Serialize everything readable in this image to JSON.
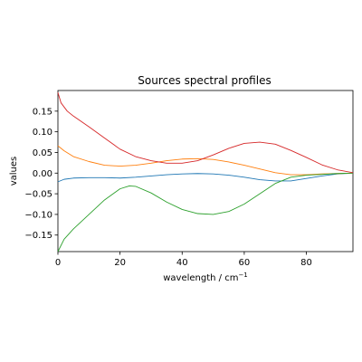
{
  "chart_data": {
    "type": "line",
    "title": "Sources spectral profiles",
    "xlabel": "wavelength / cm",
    "xlabel_superscript": "−1",
    "ylabel": "values",
    "xlim": [
      0,
      95
    ],
    "ylim": [
      -0.19,
      0.2
    ],
    "xticks": [
      0,
      20,
      40,
      60,
      80
    ],
    "xtick_labels": [
      "0",
      "20",
      "40",
      "60",
      "80"
    ],
    "yticks": [
      -0.15,
      -0.1,
      -0.05,
      0.0,
      0.05,
      0.1,
      0.15
    ],
    "ytick_labels": [
      "−0.15",
      "−0.10",
      "−0.05",
      "0.00",
      "0.05",
      "0.10",
      "0.15"
    ],
    "grid": false,
    "series": [
      {
        "color": "#1f77b4",
        "x": [
          0,
          2,
          5,
          10,
          15,
          20,
          25,
          30,
          35,
          40,
          45,
          50,
          55,
          60,
          65,
          70,
          75,
          80,
          85,
          90,
          95
        ],
        "y": [
          -0.021,
          -0.015,
          -0.012,
          -0.011,
          -0.011,
          -0.012,
          -0.01,
          -0.007,
          -0.004,
          -0.002,
          -0.001,
          -0.002,
          -0.005,
          -0.01,
          -0.016,
          -0.019,
          -0.019,
          -0.013,
          -0.007,
          -0.002,
          0.0
        ]
      },
      {
        "color": "#ff7f0e",
        "x": [
          0,
          2,
          5,
          10,
          15,
          20,
          25,
          30,
          35,
          40,
          45,
          50,
          55,
          60,
          65,
          70,
          75,
          80,
          85,
          90,
          95
        ],
        "y": [
          0.066,
          0.054,
          0.04,
          0.028,
          0.019,
          0.017,
          0.019,
          0.024,
          0.03,
          0.034,
          0.035,
          0.033,
          0.027,
          0.019,
          0.01,
          0.001,
          -0.004,
          -0.004,
          -0.002,
          -0.001,
          0.0
        ]
      },
      {
        "color": "#2ca02c",
        "x": [
          0,
          2,
          5,
          10,
          15,
          20,
          23,
          25,
          30,
          35,
          40,
          45,
          50,
          55,
          60,
          65,
          70,
          75,
          80,
          85,
          90,
          95
        ],
        "y": [
          -0.19,
          -0.16,
          -0.135,
          -0.1,
          -0.065,
          -0.038,
          -0.031,
          -0.032,
          -0.048,
          -0.07,
          -0.088,
          -0.098,
          -0.1,
          -0.093,
          -0.075,
          -0.05,
          -0.025,
          -0.01,
          -0.005,
          -0.003,
          -0.001,
          0.0
        ]
      },
      {
        "color": "#d62728",
        "x": [
          0,
          1,
          3,
          5,
          10,
          15,
          20,
          25,
          30,
          35,
          40,
          45,
          50,
          55,
          60,
          65,
          70,
          75,
          80,
          85,
          90,
          95
        ],
        "y": [
          0.195,
          0.17,
          0.15,
          0.138,
          0.112,
          0.085,
          0.058,
          0.04,
          0.03,
          0.024,
          0.024,
          0.03,
          0.044,
          0.06,
          0.072,
          0.075,
          0.07,
          0.055,
          0.038,
          0.02,
          0.008,
          0.001
        ]
      }
    ]
  }
}
